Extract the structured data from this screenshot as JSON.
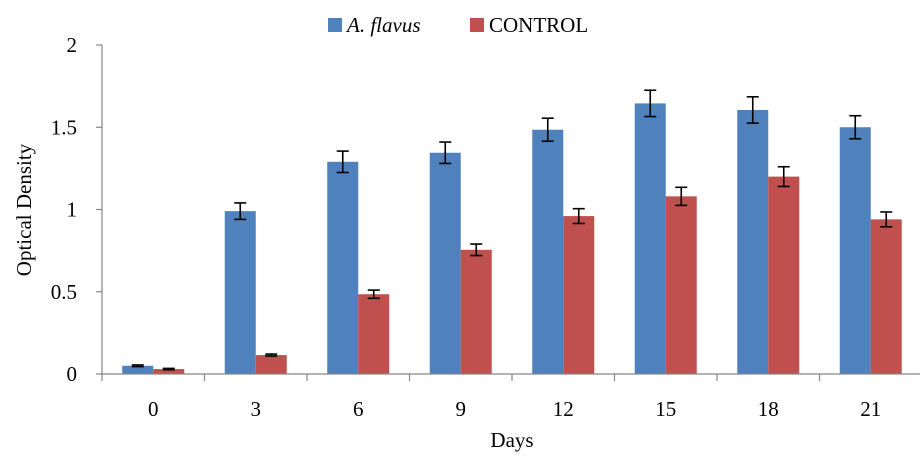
{
  "chart_data": {
    "type": "bar",
    "categories": [
      "0",
      "3",
      "6",
      "9",
      "12",
      "15",
      "18",
      "21"
    ],
    "series": [
      {
        "name": "A. flavus",
        "color": "#4f81bd",
        "values": [
          0.05,
          0.99,
          1.29,
          1.345,
          1.485,
          1.645,
          1.605,
          1.5
        ],
        "errors": [
          0.005,
          0.05,
          0.065,
          0.065,
          0.07,
          0.08,
          0.08,
          0.07
        ]
      },
      {
        "name": "CONTROL",
        "color": "#c0504d",
        "values": [
          0.03,
          0.115,
          0.485,
          0.755,
          0.96,
          1.08,
          1.2,
          0.94
        ],
        "errors": [
          0.004,
          0.006,
          0.025,
          0.035,
          0.045,
          0.055,
          0.06,
          0.045
        ]
      }
    ],
    "xlabel": "Days",
    "ylabel": "Optical Density",
    "ylim": [
      0,
      2
    ],
    "yticks": [
      "0",
      "0.5",
      "1",
      "1.5",
      "2"
    ],
    "ytick_values": [
      0,
      0.5,
      1,
      1.5,
      2
    ],
    "grid": false,
    "legend_position": "top-center"
  }
}
